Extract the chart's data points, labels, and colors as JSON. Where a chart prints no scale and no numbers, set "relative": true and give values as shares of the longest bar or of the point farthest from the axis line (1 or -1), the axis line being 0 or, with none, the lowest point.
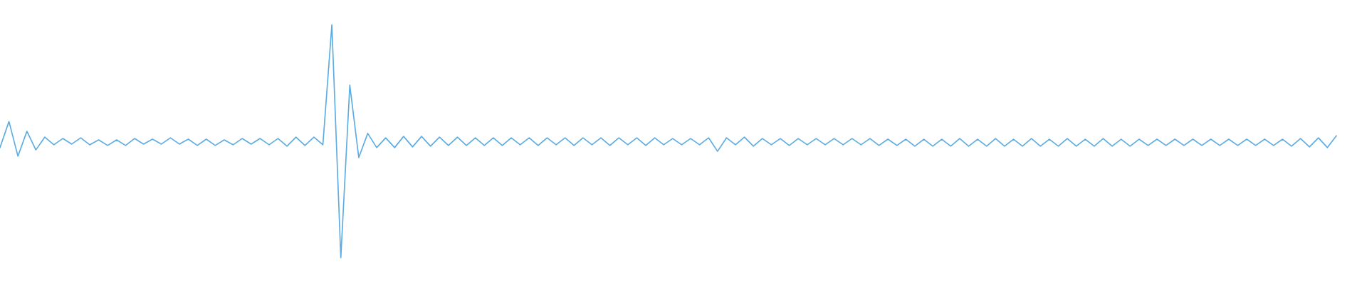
{
  "chart_data": {
    "type": "line",
    "relative": true,
    "categories": [
      null,
      null,
      null,
      null,
      null,
      null,
      null,
      null,
      null,
      null,
      null,
      null,
      null,
      null,
      null,
      null,
      null,
      null,
      null,
      null,
      null,
      null,
      null,
      null,
      null,
      null,
      null,
      null,
      null,
      null,
      null,
      null,
      null,
      null,
      null,
      null,
      null,
      null,
      null,
      null,
      null,
      null,
      null,
      null,
      null,
      null,
      null,
      null,
      null,
      null,
      null,
      null,
      null,
      null,
      null,
      null,
      null,
      null,
      null,
      null,
      null,
      null,
      null,
      null,
      null,
      null,
      null,
      null,
      null,
      null,
      null,
      null,
      null,
      null,
      null,
      null,
      null,
      null,
      null,
      null,
      null,
      null,
      null,
      null,
      null,
      null,
      null,
      null,
      null,
      null,
      null,
      null,
      null,
      null,
      null,
      null,
      null,
      null,
      null,
      null,
      null,
      null,
      null,
      null,
      null,
      null,
      null,
      null,
      null,
      null,
      null,
      null,
      null,
      null,
      null,
      null,
      null,
      null,
      null,
      null,
      null,
      null,
      null,
      null,
      null,
      null,
      null,
      null,
      null,
      null,
      null,
      null,
      null,
      null,
      null,
      null,
      null,
      null,
      null,
      null,
      null,
      null,
      null,
      null,
      null,
      null,
      null,
      null,
      null,
      null
    ],
    "series": [
      {
        "color": "#5dade2",
        "values": [
          0.473,
          0.585,
          0.436,
          0.543,
          0.463,
          0.518,
          0.485,
          0.512,
          0.488,
          0.515,
          0.485,
          0.506,
          0.482,
          0.506,
          0.482,
          0.512,
          0.488,
          0.509,
          0.488,
          0.515,
          0.488,
          0.509,
          0.482,
          0.509,
          0.482,
          0.506,
          0.485,
          0.512,
          0.488,
          0.512,
          0.485,
          0.512,
          0.479,
          0.518,
          0.482,
          0.518,
          0.485,
          1.0,
          0.0,
          0.741,
          0.43,
          0.534,
          0.473,
          0.515,
          0.473,
          0.521,
          0.476,
          0.521,
          0.479,
          0.518,
          0.482,
          0.518,
          0.482,
          0.515,
          0.482,
          0.515,
          0.482,
          0.515,
          0.485,
          0.515,
          0.482,
          0.515,
          0.485,
          0.515,
          0.482,
          0.515,
          0.485,
          0.515,
          0.482,
          0.515,
          0.485,
          0.515,
          0.482,
          0.515,
          0.485,
          0.512,
          0.485,
          0.512,
          0.485,
          0.515,
          0.457,
          0.515,
          0.485,
          0.518,
          0.479,
          0.512,
          0.485,
          0.512,
          0.482,
          0.512,
          0.485,
          0.512,
          0.485,
          0.512,
          0.485,
          0.512,
          0.485,
          0.512,
          0.482,
          0.509,
          0.482,
          0.509,
          0.479,
          0.509,
          0.479,
          0.509,
          0.479,
          0.512,
          0.479,
          0.509,
          0.479,
          0.512,
          0.479,
          0.509,
          0.479,
          0.512,
          0.479,
          0.509,
          0.479,
          0.512,
          0.479,
          0.509,
          0.479,
          0.512,
          0.479,
          0.509,
          0.479,
          0.509,
          0.482,
          0.509,
          0.482,
          0.509,
          0.482,
          0.509,
          0.482,
          0.509,
          0.482,
          0.509,
          0.482,
          0.509,
          0.482,
          0.509,
          0.482,
          0.509,
          0.479,
          0.512,
          0.476,
          0.515,
          0.473,
          0.524
        ]
      }
    ]
  }
}
